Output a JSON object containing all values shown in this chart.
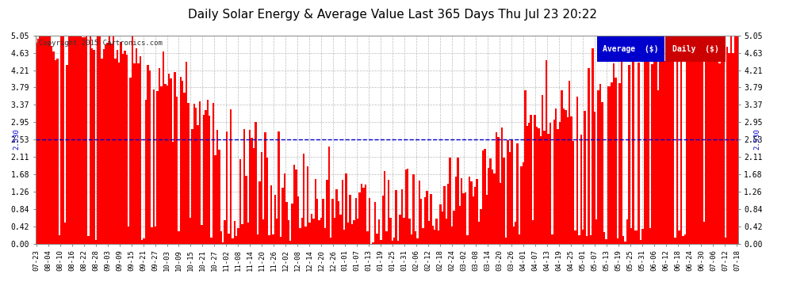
{
  "title": "Daily Solar Energy & Average Value Last 365 Days Thu Jul 23 20:22",
  "copyright": "Copyright 2015 Cartronics.com",
  "average_label": "Average  ($)",
  "daily_label": "Daily  ($)",
  "average_value": 2.53,
  "ymax": 5.05,
  "yticks": [
    0.0,
    0.42,
    0.84,
    1.26,
    1.68,
    2.11,
    2.53,
    2.95,
    3.37,
    3.79,
    4.21,
    4.63,
    5.05
  ],
  "bar_color": "#FF0000",
  "avg_line_color": "#0000CD",
  "background_color": "#FFFFFF",
  "plot_bg_color": "#FFFFFF",
  "grid_color": "#BBBBBB",
  "avg_label_bg": "#0000CC",
  "daily_label_bg": "#CC0000",
  "avg_left_text": "2.530",
  "avg_right_text": "2.530",
  "x_tick_labels": [
    "07-23",
    "08-04",
    "08-10",
    "08-16",
    "08-22",
    "08-28",
    "09-03",
    "09-09",
    "09-15",
    "09-21",
    "09-27",
    "10-03",
    "10-09",
    "10-15",
    "10-21",
    "10-27",
    "11-02",
    "11-08",
    "11-14",
    "11-20",
    "11-26",
    "12-02",
    "12-08",
    "12-14",
    "12-20",
    "12-26",
    "01-01",
    "01-07",
    "01-13",
    "01-19",
    "01-25",
    "01-31",
    "02-06",
    "02-12",
    "02-18",
    "02-24",
    "03-02",
    "03-08",
    "03-14",
    "03-20",
    "03-26",
    "04-01",
    "04-07",
    "04-13",
    "04-19",
    "04-25",
    "05-01",
    "05-07",
    "05-13",
    "05-19",
    "05-25",
    "05-31",
    "06-06",
    "06-12",
    "06-18",
    "06-24",
    "06-30",
    "07-06",
    "07-12",
    "07-18"
  ]
}
